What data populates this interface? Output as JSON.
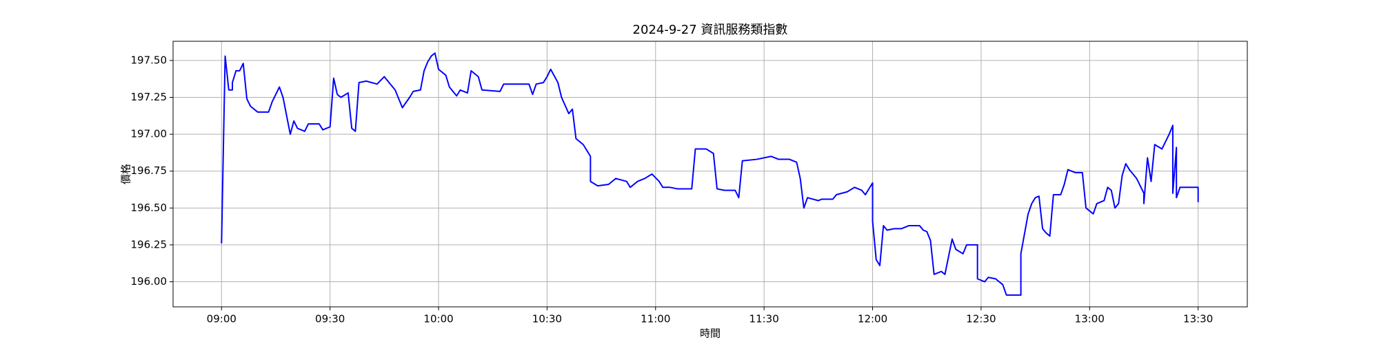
{
  "chart_data": {
    "type": "line",
    "title": "2024-9-27 資訊服務類指數",
    "xlabel": "時間",
    "ylabel": "價格",
    "x": [
      "09:00",
      "09:01",
      "09:02",
      "09:03",
      "09:03",
      "09:04",
      "09:05",
      "09:06",
      "09:07",
      "09:08",
      "09:10",
      "09:13",
      "09:14",
      "09:16",
      "09:17",
      "09:19",
      "09:20",
      "09:21",
      "09:23",
      "09:24",
      "09:27",
      "09:28",
      "09:30",
      "09:31",
      "09:32",
      "09:33",
      "09:35",
      "09:36",
      "09:37",
      "09:38",
      "09:40",
      "09:43",
      "09:45",
      "09:47",
      "09:48",
      "09:50",
      "09:52",
      "09:53",
      "09:55",
      "09:56",
      "09:57",
      "09:58",
      "09:59",
      "10:00",
      "10:02",
      "10:03",
      "10:05",
      "10:06",
      "10:08",
      "10:09",
      "10:11",
      "10:12",
      "10:17",
      "10:18",
      "10:25",
      "10:26",
      "10:27",
      "10:29",
      "10:30",
      "10:31",
      "10:33",
      "10:34",
      "10:36",
      "10:37",
      "10:38",
      "10:40",
      "10:42",
      "10:42",
      "10:44",
      "10:47",
      "10:49",
      "10:52",
      "10:53",
      "10:55",
      "10:57",
      "10:59",
      "11:01",
      "11:02",
      "11:04",
      "11:06",
      "11:10",
      "11:11",
      "11:14",
      "11:16",
      "11:17",
      "11:19",
      "11:22",
      "11:23",
      "11:24",
      "11:28",
      "11:32",
      "11:34",
      "11:37",
      "11:39",
      "11:40",
      "11:41",
      "11:42",
      "11:45",
      "11:46",
      "11:49",
      "11:50",
      "11:53",
      "11:55",
      "11:57",
      "11:58",
      "12:00",
      "12:00",
      "12:01",
      "12:02",
      "12:03",
      "12:04",
      "12:06",
      "12:08",
      "12:10",
      "12:13",
      "12:14",
      "12:15",
      "12:16",
      "12:17",
      "12:19",
      "12:20",
      "12:22",
      "12:23",
      "12:25",
      "12:26",
      "12:29",
      "12:29",
      "12:31",
      "12:32",
      "12:34",
      "12:36",
      "12:37",
      "12:41",
      "12:41",
      "12:43",
      "12:44",
      "12:45",
      "12:46",
      "12:47",
      "12:48",
      "12:49",
      "12:50",
      "12:52",
      "12:53",
      "12:54",
      "12:56",
      "12:58",
      "12:59",
      "13:01",
      "13:02",
      "13:04",
      "13:05",
      "13:06",
      "13:07",
      "13:08",
      "13:09",
      "13:10",
      "13:11",
      "13:13",
      "13:15",
      "13:15",
      "13:16",
      "13:17",
      "13:18",
      "13:20",
      "13:21",
      "13:22",
      "13:23",
      "13:23",
      "13:24",
      "13:24",
      "13:25",
      "13:30",
      "13:30"
    ],
    "series": [
      {
        "color": "#0000ff",
        "values": [
          196.26,
          197.53,
          197.3,
          197.3,
          197.35,
          197.43,
          197.43,
          197.48,
          197.24,
          197.19,
          197.15,
          197.15,
          197.22,
          197.32,
          197.25,
          197.0,
          197.09,
          197.04,
          197.02,
          197.07,
          197.07,
          197.03,
          197.05,
          197.38,
          197.27,
          197.25,
          197.28,
          197.04,
          197.02,
          197.35,
          197.36,
          197.34,
          197.39,
          197.33,
          197.3,
          197.18,
          197.25,
          197.29,
          197.3,
          197.43,
          197.49,
          197.53,
          197.55,
          197.44,
          197.4,
          197.32,
          197.26,
          197.3,
          197.28,
          197.43,
          197.39,
          197.3,
          197.29,
          197.34,
          197.34,
          197.27,
          197.34,
          197.35,
          197.39,
          197.44,
          197.35,
          197.25,
          197.14,
          197.17,
          196.97,
          196.93,
          196.85,
          196.68,
          196.65,
          196.66,
          196.7,
          196.68,
          196.64,
          196.68,
          196.7,
          196.73,
          196.68,
          196.64,
          196.64,
          196.63,
          196.63,
          196.9,
          196.9,
          196.87,
          196.63,
          196.62,
          196.62,
          196.57,
          196.82,
          196.83,
          196.85,
          196.83,
          196.83,
          196.81,
          196.7,
          196.5,
          196.57,
          196.55,
          196.56,
          196.56,
          196.59,
          196.61,
          196.64,
          196.62,
          196.59,
          196.67,
          196.41,
          196.15,
          196.11,
          196.38,
          196.35,
          196.36,
          196.36,
          196.38,
          196.38,
          196.35,
          196.34,
          196.28,
          196.05,
          196.07,
          196.05,
          196.29,
          196.22,
          196.19,
          196.25,
          196.25,
          196.02,
          196.0,
          196.03,
          196.02,
          195.98,
          195.91,
          195.91,
          196.19,
          196.46,
          196.53,
          196.57,
          196.58,
          196.36,
          196.33,
          196.31,
          196.59,
          196.59,
          196.66,
          196.76,
          196.74,
          196.74,
          196.5,
          196.46,
          196.53,
          196.55,
          196.64,
          196.62,
          196.5,
          196.53,
          196.72,
          196.8,
          196.76,
          196.7,
          196.6,
          196.53,
          196.84,
          196.68,
          196.93,
          196.9,
          196.95,
          197.0,
          197.06,
          196.6,
          196.91,
          196.57,
          196.64,
          196.64,
          196.54
        ]
      }
    ],
    "xlim": [
      "08:46:36",
      "13:43:36"
    ],
    "xticks": [
      "09:00",
      "09:30",
      "10:00",
      "10:30",
      "11:00",
      "11:30",
      "12:00",
      "12:30",
      "13:00",
      "13:30"
    ],
    "ylim": [
      195.83,
      197.63
    ],
    "yticks": [
      {
        "value": 196,
        "label": "196.00"
      },
      {
        "value": 196.25,
        "label": "196.25"
      },
      {
        "value": 196.5,
        "label": "196.50"
      },
      {
        "value": 196.75,
        "label": "196.75"
      },
      {
        "value": 197,
        "label": "197.00"
      },
      {
        "value": 197.25,
        "label": "197.25"
      },
      {
        "value": 197.5,
        "label": "197.50"
      }
    ],
    "grid": true
  }
}
